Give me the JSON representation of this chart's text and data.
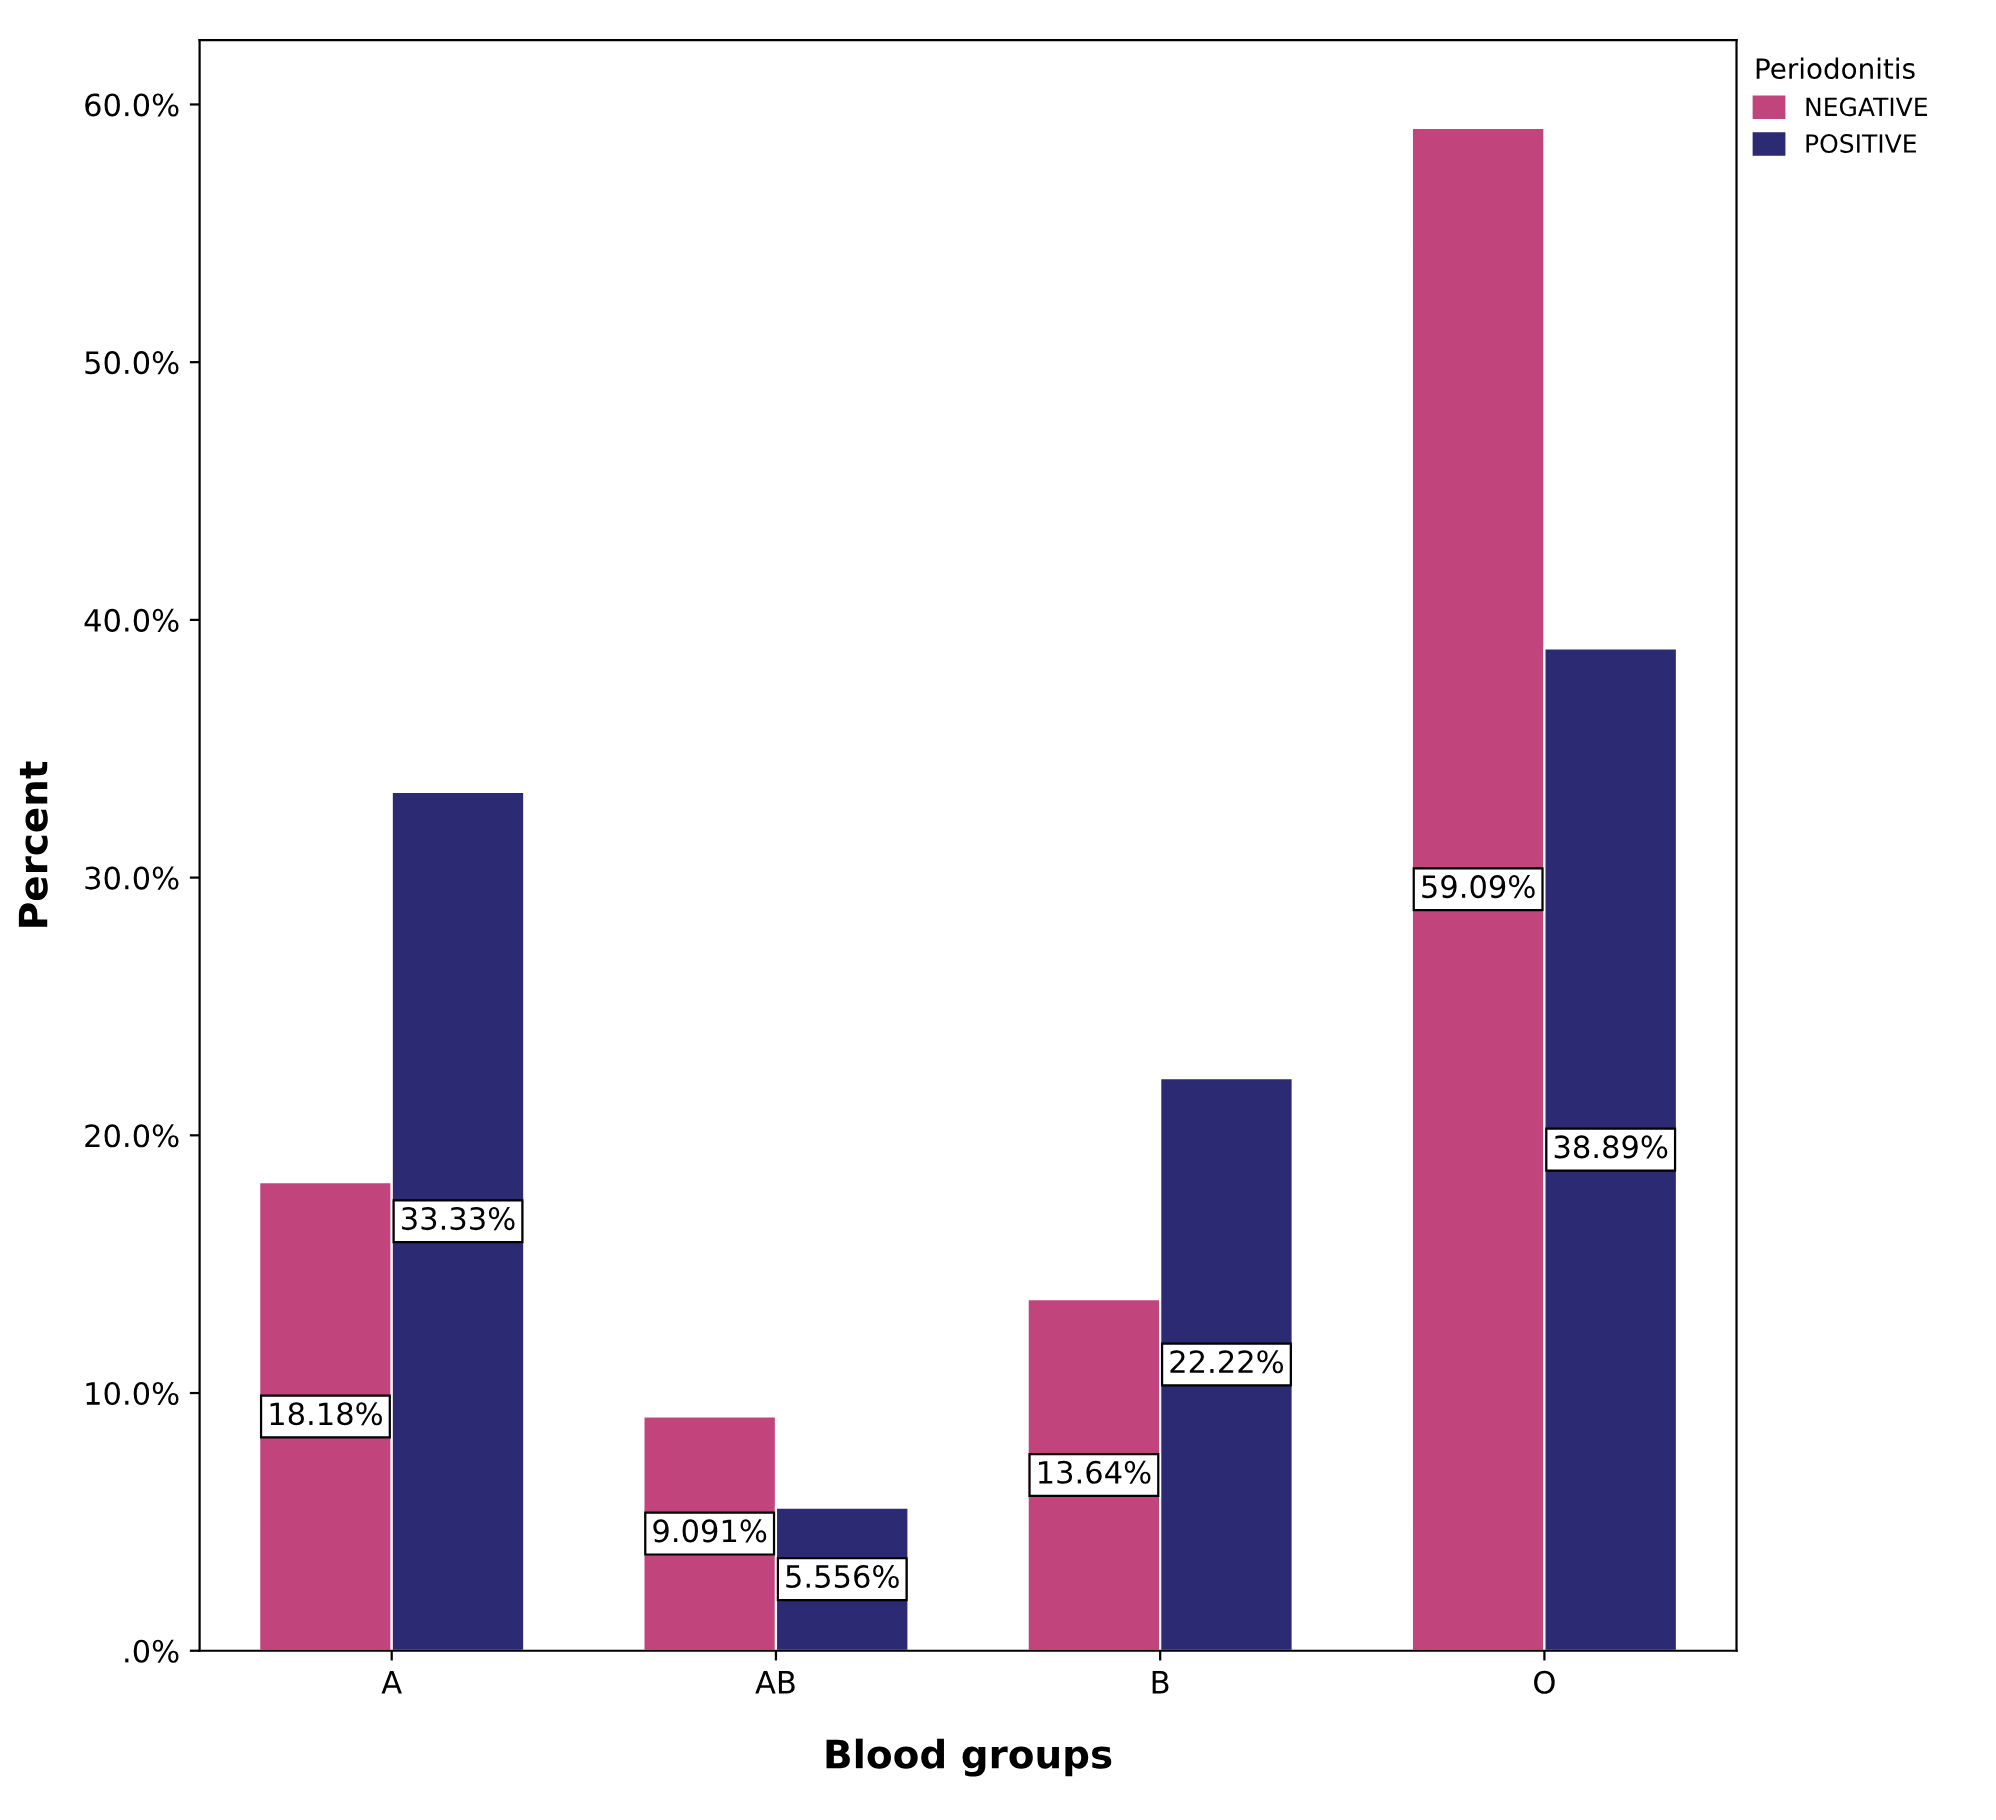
{
  "chart_data": {
    "type": "bar",
    "xlabel": "Blood groups",
    "ylabel": "Percent",
    "legend_title": "Periodonitis",
    "categories": [
      "A",
      "AB",
      "B",
      "O"
    ],
    "series": [
      {
        "name": "NEGATIVE",
        "color": "#c2447c",
        "values": [
          18.18,
          9.091,
          13.64,
          59.09
        ],
        "value_labels": [
          "18.18%",
          "9.091%",
          "13.64%",
          "59.09%"
        ]
      },
      {
        "name": "POSITIVE",
        "color": "#2b2a72",
        "values": [
          33.33,
          5.556,
          22.22,
          38.89
        ],
        "value_labels": [
          "33.33%",
          "5.556%",
          "22.22%",
          "38.89%"
        ]
      }
    ],
    "ylim": [
      0,
      62.5
    ],
    "yticks": [
      {
        "value": 0,
        "label": ".0%"
      },
      {
        "value": 10,
        "label": "10.0%"
      },
      {
        "value": 20,
        "label": "20.0%"
      },
      {
        "value": 30,
        "label": "30.0%"
      },
      {
        "value": 40,
        "label": "40.0%"
      },
      {
        "value": 50,
        "label": "50.0%"
      },
      {
        "value": 60,
        "label": "60.0%"
      }
    ],
    "grid": false,
    "legend": "top right"
  }
}
